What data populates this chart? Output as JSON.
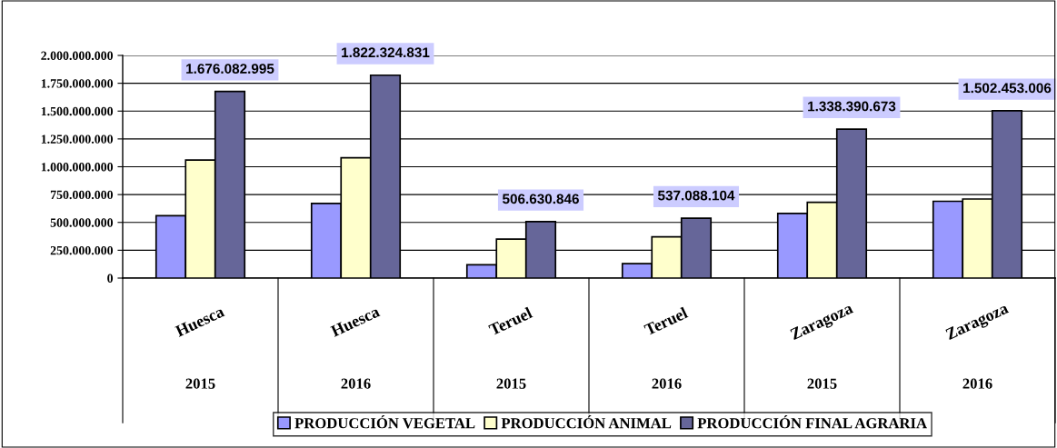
{
  "chart_data": {
    "type": "bar",
    "categories": [
      "Huesca\n2015",
      "Huesca\n2016",
      "Teruel\n2015",
      "Teruel\n2016",
      "Zaragoza\n2015",
      "Zaragoza\n2016"
    ],
    "series": [
      {
        "name": "PRODUCCIÓN VEGETAL",
        "color": "#9999ff",
        "values": [
          560000000,
          670000000,
          120000000,
          130000000,
          580000000,
          690000000
        ]
      },
      {
        "name": "PRODUCCIÓN ANIMAL",
        "color": "#ffffcc",
        "values": [
          1060000000,
          1080000000,
          350000000,
          370000000,
          680000000,
          710000000
        ]
      },
      {
        "name": "PRODUCCIÓN FINAL AGRARIA",
        "color": "#666699",
        "values": [
          1676082995,
          1822324831,
          506630846,
          537088104,
          1338390673,
          1502453006
        ],
        "value_labels": [
          "1.676.082.995",
          "1.822.324.831",
          "506.630.846",
          "537.088.104",
          "1.338.390.673",
          "1.502.453.006"
        ]
      }
    ],
    "ylim": [
      0,
      2000000000
    ],
    "yticks": [
      {
        "value": 0,
        "label": "0"
      },
      {
        "value": 250000000,
        "label": "250.000.000"
      },
      {
        "value": 500000000,
        "label": "500.000.000"
      },
      {
        "value": 750000000,
        "label": "750.000.000"
      },
      {
        "value": 1000000000,
        "label": "1.000.000.000"
      },
      {
        "value": 1250000000,
        "label": "1.250.000.000"
      },
      {
        "value": 1500000000,
        "label": "1.500.000.000"
      },
      {
        "value": 1750000000,
        "label": "1.750.000.000"
      },
      {
        "value": 2000000000,
        "label": "2.000.000.000"
      }
    ],
    "grid": "y",
    "legend": "bottom"
  }
}
